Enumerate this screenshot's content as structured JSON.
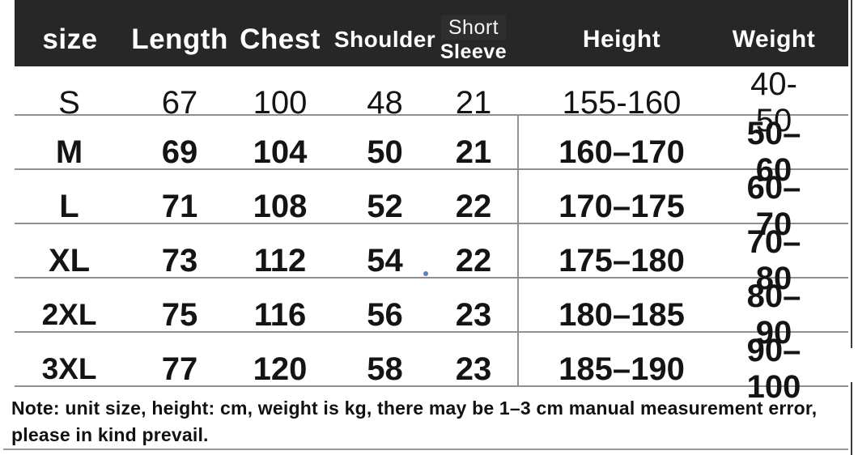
{
  "colors": {
    "header_bg": "#272727",
    "header_text": "#ffffff",
    "body_text": "#141414",
    "grid_line": "#909090",
    "edge_line": "#3c3c3c",
    "bottom_rule": "#9a9a9a",
    "blue_dot": "#5b7ed1"
  },
  "table": {
    "headers": {
      "size": "size",
      "length": "Length",
      "chest": "Chest",
      "shoulder": "Shoulder",
      "sleeve_line1": "Short",
      "sleeve_line2": "Sleeve",
      "height": "Height",
      "weight": "Weight"
    },
    "rows": [
      {
        "size": "S",
        "length": "67",
        "chest": "100",
        "shoulder": "48",
        "sleeve": "21",
        "height": "155-160",
        "weight": "40-50"
      },
      {
        "size": "M",
        "length": "69",
        "chest": "104",
        "shoulder": "50",
        "sleeve": "21",
        "height": "160–170",
        "weight": "50–60"
      },
      {
        "size": "L",
        "length": "71",
        "chest": "108",
        "shoulder": "52",
        "sleeve": "22",
        "height": "170–175",
        "weight": "60–70"
      },
      {
        "size": "XL",
        "length": "73",
        "chest": "112",
        "shoulder": "54",
        "sleeve": "22",
        "height": "175–180",
        "weight": "70–80"
      },
      {
        "size": "2XL",
        "length": "75",
        "chest": "116",
        "shoulder": "56",
        "sleeve": "23",
        "height": "180–185",
        "weight": "80–90"
      },
      {
        "size": "3XL",
        "length": "77",
        "chest": "120",
        "shoulder": "58",
        "sleeve": "23",
        "height": "185–190",
        "weight": "90–100"
      }
    ]
  },
  "note": {
    "line1": "Note: unit size, height: cm, weight is kg, there may be 1–3 cm manual measurement error,",
    "line2": "please in kind prevail."
  }
}
